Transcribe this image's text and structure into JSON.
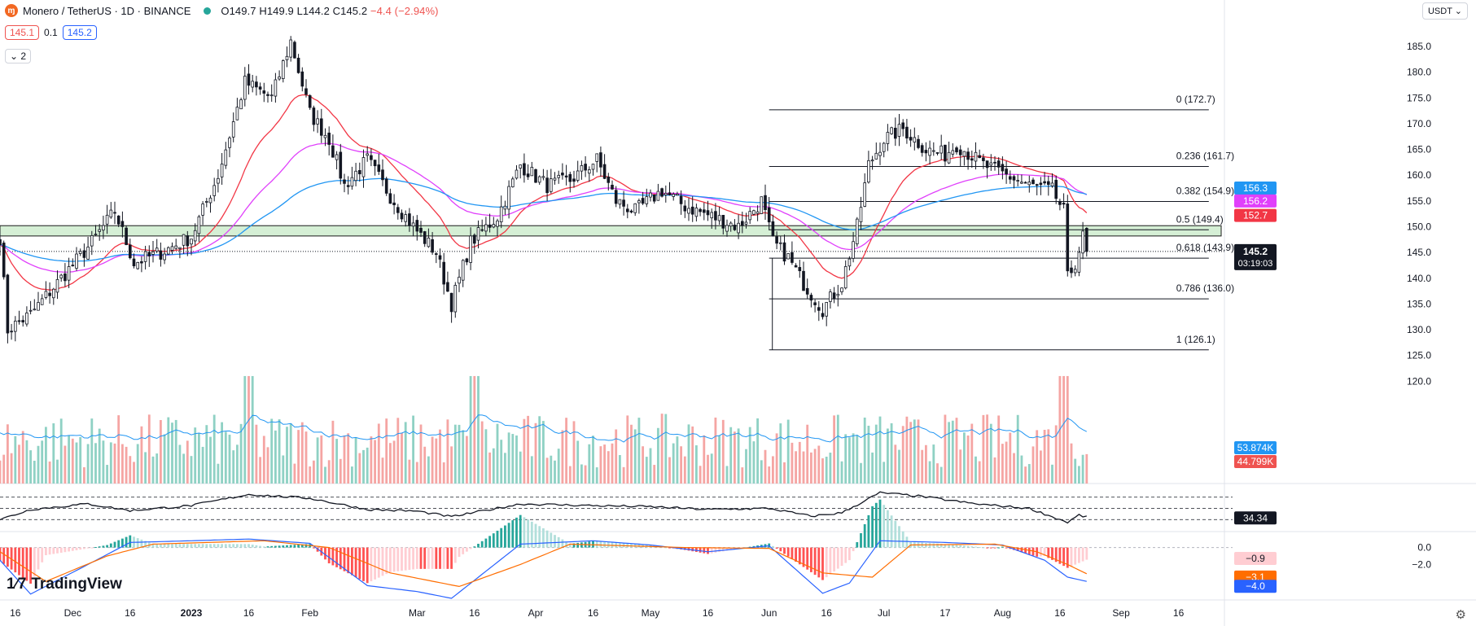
{
  "header": {
    "symbol_title": "Monero / TetherUS · 1D · BINANCE",
    "ohlc": "O149.7 H149.9 L144.2 C145.2",
    "change": "−4.4 (−2.94%)",
    "input_a": "145.1",
    "input_mid": "0.1",
    "input_b": "145.2",
    "collapse_label": "2",
    "currency": "USDT"
  },
  "brand": {
    "name": "TradingView"
  },
  "colors": {
    "up": "#26a69a",
    "down": "#ef5350",
    "ema_fast": "#f23645",
    "ema_mid": "#e040fb",
    "ema_slow": "#2196f3",
    "fib": "#131722",
    "zone_fill": "#d5efd5",
    "zone_border": "#1b1b1b",
    "rsi": "#131722",
    "macd": "#2962ff",
    "signal": "#ff6d00"
  },
  "chart_data": [
    {
      "type": "candlestick",
      "title": "Monero / TetherUS · 1D · BINANCE",
      "x_range": [
        "2022-11-12",
        "2023-09-28"
      ],
      "x_ticks": [
        {
          "label": "16",
          "date": "2022-11-16"
        },
        {
          "label": "Dec",
          "date": "2022-12-01"
        },
        {
          "label": "16",
          "date": "2022-12-16"
        },
        {
          "label": "2023",
          "date": "2023-01-01"
        },
        {
          "label": "16",
          "date": "2023-01-16"
        },
        {
          "label": "Feb",
          "date": "2023-02-01"
        },
        {
          "label": "Mar",
          "date": "2023-03-01"
        },
        {
          "label": "16",
          "date": "2023-03-16"
        },
        {
          "label": "Apr",
          "date": "2023-04-01"
        },
        {
          "label": "16",
          "date": "2023-04-16"
        },
        {
          "label": "May",
          "date": "2023-05-01"
        },
        {
          "label": "16",
          "date": "2023-05-16"
        },
        {
          "label": "Jun",
          "date": "2023-06-01"
        },
        {
          "label": "16",
          "date": "2023-06-16"
        },
        {
          "label": "Jul",
          "date": "2023-07-01"
        },
        {
          "label": "17",
          "date": "2023-07-17"
        },
        {
          "label": "Aug",
          "date": "2023-08-01"
        },
        {
          "label": "16",
          "date": "2023-08-16"
        },
        {
          "label": "Sep",
          "date": "2023-09-01"
        },
        {
          "label": "16",
          "date": "2023-09-16"
        }
      ],
      "ylim": [
        115,
        188
      ],
      "y_ticks": [
        185.0,
        180.0,
        175.0,
        170.0,
        165.0,
        160.0,
        155.0,
        150.0,
        145.0,
        140.0,
        135.0,
        130.0,
        125.0,
        120.0
      ],
      "price_anchors": [
        [
          "2022-11-12",
          148
        ],
        [
          "2022-11-14",
          130
        ],
        [
          "2022-11-20",
          133
        ],
        [
          "2022-11-28",
          140
        ],
        [
          "2022-12-05",
          146
        ],
        [
          "2022-12-12",
          153
        ],
        [
          "2022-12-17",
          143
        ],
        [
          "2022-12-24",
          145
        ],
        [
          "2023-01-01",
          148
        ],
        [
          "2023-01-08",
          160
        ],
        [
          "2023-01-15",
          178
        ],
        [
          "2023-01-22",
          175
        ],
        [
          "2023-01-27",
          186
        ],
        [
          "2023-02-01",
          172
        ],
        [
          "2023-02-06",
          167
        ],
        [
          "2023-02-10",
          158
        ],
        [
          "2023-02-16",
          163
        ],
        [
          "2023-02-22",
          156
        ],
        [
          "2023-02-28",
          150
        ],
        [
          "2023-03-06",
          145
        ],
        [
          "2023-03-10",
          135
        ],
        [
          "2023-03-15",
          147
        ],
        [
          "2023-03-22",
          152
        ],
        [
          "2023-03-28",
          162
        ],
        [
          "2023-04-04",
          158
        ],
        [
          "2023-04-10",
          159
        ],
        [
          "2023-04-17",
          163
        ],
        [
          "2023-04-22",
          155
        ],
        [
          "2023-04-27",
          153
        ],
        [
          "2023-05-04",
          157
        ],
        [
          "2023-05-10",
          154
        ],
        [
          "2023-05-17",
          152
        ],
        [
          "2023-05-24",
          150
        ],
        [
          "2023-05-30",
          155
        ],
        [
          "2023-06-02",
          147
        ],
        [
          "2023-06-06",
          144
        ],
        [
          "2023-06-10",
          139
        ],
        [
          "2023-06-15",
          134
        ],
        [
          "2023-06-20",
          139
        ],
        [
          "2023-06-24",
          150
        ],
        [
          "2023-06-27",
          162
        ],
        [
          "2023-07-01",
          167
        ],
        [
          "2023-07-06",
          169
        ],
        [
          "2023-07-12",
          165
        ],
        [
          "2023-07-17",
          164
        ],
        [
          "2023-07-20",
          166
        ],
        [
          "2023-07-27",
          162
        ],
        [
          "2023-08-02",
          160
        ],
        [
          "2023-08-08",
          158
        ],
        [
          "2023-08-14",
          157
        ],
        [
          "2023-08-17",
          153
        ],
        [
          "2023-08-18",
          140
        ],
        [
          "2023-08-20",
          143
        ],
        [
          "2023-08-22",
          148
        ],
        [
          "2023-08-23",
          145.2
        ]
      ],
      "last_candle": {
        "date": "2023-08-23",
        "open": 149.7,
        "high": 149.9,
        "low": 144.2,
        "close": 145.2
      },
      "period_high": 188.0,
      "period_low": 126.1,
      "moving_averages": [
        {
          "color": "#f23645",
          "last": 152.7,
          "period": 20
        },
        {
          "color": "#e040fb",
          "last": 156.2,
          "period": 50
        },
        {
          "color": "#2196f3",
          "last": 156.3,
          "period": 100
        }
      ],
      "fibonacci": {
        "start_date": "2023-06-01",
        "end_date": "2023-08-23",
        "levels": [
          {
            "ratio": "0",
            "label": "0 (172.7)",
            "price": 172.7
          },
          {
            "ratio": "0.236",
            "label": "0.236 (161.7)",
            "price": 161.7
          },
          {
            "ratio": "0.382",
            "label": "0.382 (154.9)",
            "price": 154.9
          },
          {
            "ratio": "0.5",
            "label": "0.5 (149.4)",
            "price": 149.4
          },
          {
            "ratio": "0.618",
            "label": "0.618 (143.9)",
            "price": 143.9
          },
          {
            "ratio": "0.786",
            "label": "0.786 (136.0)",
            "price": 136.0
          },
          {
            "ratio": "1",
            "label": "1 (126.1)",
            "price": 126.1
          }
        ]
      },
      "zone": {
        "low": 148.2,
        "high": 150.2
      },
      "current_price": {
        "value": 145.2,
        "label": "145.2",
        "countdown": "03:19:03"
      },
      "axis_labels": {
        "ema_slow": "156.3",
        "ema_mid": "156.2",
        "ema_fast": "152.7",
        "volume_ma": "53.874K",
        "volume_last": "44.799K"
      }
    },
    {
      "type": "bar",
      "title": "Volume",
      "volume_ma_last": "53.874K",
      "volume_last": "44.799K",
      "relative_range": [
        0.15,
        1.0
      ],
      "spikes": [
        [
          "2023-01-16",
          1.0
        ],
        [
          "2023-03-16",
          1.0
        ],
        [
          "2023-08-17",
          1.0
        ]
      ]
    },
    {
      "type": "line",
      "title": "RSI",
      "ylim": [
        10,
        90
      ],
      "bands": [
        70,
        50,
        30
      ],
      "last": 34.34,
      "last_label": "34.34",
      "anchors": [
        [
          "2022-11-12",
          30
        ],
        [
          "2022-11-20",
          48
        ],
        [
          "2022-12-05",
          58
        ],
        [
          "2022-12-16",
          46
        ],
        [
          "2023-01-01",
          55
        ],
        [
          "2023-01-16",
          75
        ],
        [
          "2023-02-01",
          68
        ],
        [
          "2023-02-16",
          48
        ],
        [
          "2023-03-01",
          45
        ],
        [
          "2023-03-10",
          35
        ],
        [
          "2023-03-28",
          58
        ],
        [
          "2023-04-16",
          55
        ],
        [
          "2023-05-01",
          53
        ],
        [
          "2023-05-16",
          48
        ],
        [
          "2023-06-01",
          50
        ],
        [
          "2023-06-12",
          36
        ],
        [
          "2023-06-20",
          42
        ],
        [
          "2023-06-30",
          78
        ],
        [
          "2023-07-10",
          72
        ],
        [
          "2023-07-25",
          58
        ],
        [
          "2023-08-08",
          50
        ],
        [
          "2023-08-18",
          25
        ],
        [
          "2023-08-21",
          38
        ],
        [
          "2023-08-23",
          34.34
        ]
      ]
    },
    {
      "type": "line",
      "title": "MACD",
      "ylim": [
        -6,
        1.5
      ],
      "y_ticks": [
        0.0,
        -2.0
      ],
      "last_values": [
        {
          "name": "histogram",
          "value": -0.9,
          "label": "−0.9"
        },
        {
          "name": "signal",
          "value": -3.1,
          "label": "−3.1"
        },
        {
          "name": "macd",
          "value": -4.0,
          "label": "−4.0"
        }
      ],
      "macd_anchors": [
        [
          "2022-11-12",
          -1.5
        ],
        [
          "2022-11-20",
          -5.5
        ],
        [
          "2022-12-05",
          -2
        ],
        [
          "2022-12-16",
          0.6
        ],
        [
          "2023-01-01",
          0.8
        ],
        [
          "2023-01-16",
          1.0
        ],
        [
          "2023-02-01",
          0.5
        ],
        [
          "2023-02-16",
          -4.5
        ],
        [
          "2023-03-01",
          -5.2
        ],
        [
          "2023-03-10",
          -6
        ],
        [
          "2023-03-28",
          0.4
        ],
        [
          "2023-04-16",
          0.8
        ],
        [
          "2023-05-01",
          0.3
        ],
        [
          "2023-05-16",
          -0.5
        ],
        [
          "2023-06-01",
          0.2
        ],
        [
          "2023-06-15",
          -5.4
        ],
        [
          "2023-06-22",
          -4.2
        ],
        [
          "2023-06-30",
          0.8
        ],
        [
          "2023-07-17",
          0.6
        ],
        [
          "2023-08-01",
          0.3
        ],
        [
          "2023-08-12",
          -1.5
        ],
        [
          "2023-08-18",
          -3.5
        ],
        [
          "2023-08-23",
          -4.0
        ]
      ],
      "signal_anchors": [
        [
          "2022-11-12",
          -0.5
        ],
        [
          "2022-11-24",
          -4.0
        ],
        [
          "2022-12-10",
          -1.0
        ],
        [
          "2022-12-22",
          0.4
        ],
        [
          "2023-01-20",
          0.8
        ],
        [
          "2023-02-06",
          0.0
        ],
        [
          "2023-02-22",
          -3.0
        ],
        [
          "2023-03-12",
          -4.6
        ],
        [
          "2023-03-28",
          -2.0
        ],
        [
          "2023-04-10",
          0.4
        ],
        [
          "2023-05-10",
          0.0
        ],
        [
          "2023-06-01",
          -0.1
        ],
        [
          "2023-06-15",
          -3.0
        ],
        [
          "2023-06-28",
          -3.5
        ],
        [
          "2023-07-08",
          0.3
        ],
        [
          "2023-07-30",
          0.4
        ],
        [
          "2023-08-10",
          -0.5
        ],
        [
          "2023-08-18",
          -2.0
        ],
        [
          "2023-08-23",
          -3.1
        ]
      ],
      "histogram_last": -0.9
    }
  ]
}
